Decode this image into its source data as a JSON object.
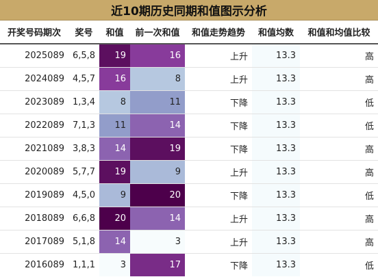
{
  "title": "近10期历史同期和值图示分析",
  "headers": [
    "开奖号码期次",
    "奖号",
    "和值",
    "前一次和值",
    "和值走势趋势",
    "和值均数",
    "和值和均值比较"
  ],
  "rows": [
    {
      "period": "2025089",
      "numbers": "6,5,8",
      "sum": "19",
      "prev_sum": "16",
      "trend": "上升",
      "avg": "13.3",
      "compare": "高"
    },
    {
      "period": "2024089",
      "numbers": "4,5,7",
      "sum": "16",
      "prev_sum": "8",
      "trend": "上升",
      "avg": "13.3",
      "compare": "高"
    },
    {
      "period": "2023089",
      "numbers": "1,3,4",
      "sum": "8",
      "prev_sum": "11",
      "trend": "下降",
      "avg": "13.3",
      "compare": "低"
    },
    {
      "period": "2022089",
      "numbers": "7,1,3",
      "sum": "11",
      "prev_sum": "14",
      "trend": "下降",
      "avg": "13.3",
      "compare": "低"
    },
    {
      "period": "2021089",
      "numbers": "3,8,3",
      "sum": "14",
      "prev_sum": "19",
      "trend": "下降",
      "avg": "13.3",
      "compare": "高"
    },
    {
      "period": "2020089",
      "numbers": "5,7,7",
      "sum": "19",
      "prev_sum": "9",
      "trend": "上升",
      "avg": "13.3",
      "compare": "高"
    },
    {
      "period": "2019089",
      "numbers": "4,5,0",
      "sum": "9",
      "prev_sum": "20",
      "trend": "下降",
      "avg": "13.3",
      "compare": "低"
    },
    {
      "period": "2018089",
      "numbers": "6,6,8",
      "sum": "20",
      "prev_sum": "14",
      "trend": "上升",
      "avg": "13.3",
      "compare": "高"
    },
    {
      "period": "2017089",
      "numbers": "5,1,8",
      "sum": "14",
      "prev_sum": "3",
      "trend": "上升",
      "avg": "13.3",
      "compare": "高"
    },
    {
      "period": "2016089",
      "numbers": "1,1,1",
      "sum": "3",
      "prev_sum": "17",
      "trend": "下降",
      "avg": "13.3",
      "compare": "低"
    }
  ],
  "colors": {
    "title_bg": "#c8a96a",
    "heat_low": "#f7fcfd",
    "heat_mid_low": "#bfd3e6",
    "heat_mid": "#8c96c6",
    "heat_mid_high": "#8c3fa0",
    "heat_high": "#4d004b",
    "avg_bg": "#f5fbfd"
  }
}
